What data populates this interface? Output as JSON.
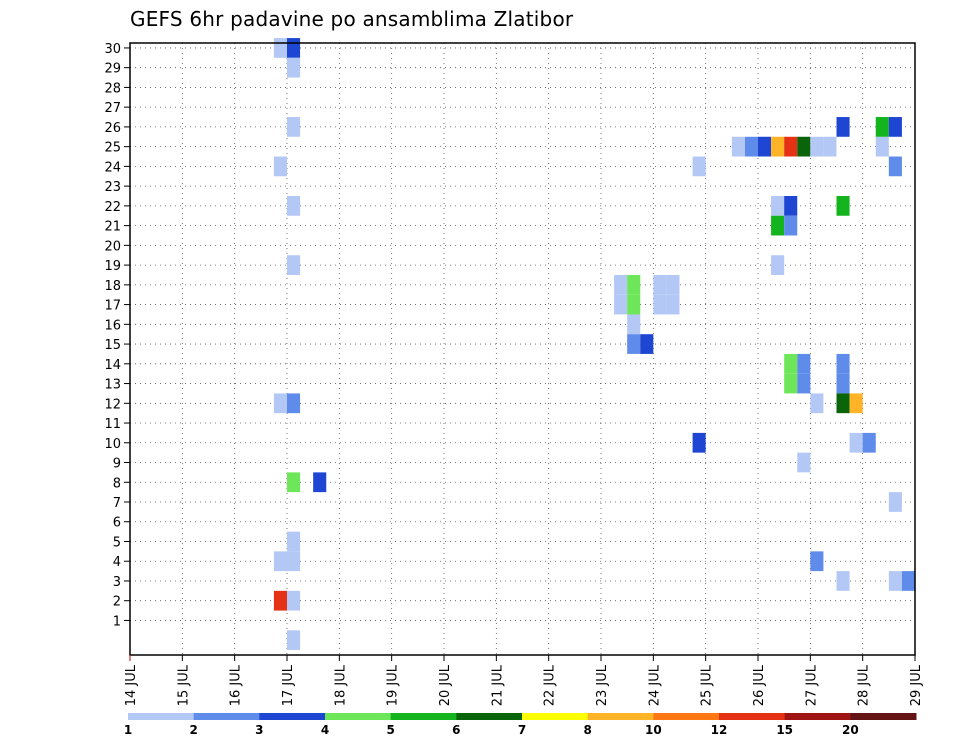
{
  "chart_data": {
    "type": "heatmap",
    "title": "GEFS 6hr padavine po ansamblima Zlatibor",
    "x_tick_labels": [
      "14 JUL",
      "15 JUL",
      "16 JUL",
      "17 JUL",
      "18 JUL",
      "19 JUL",
      "20 JUL",
      "21 JUL",
      "22 JUL",
      "23 JUL",
      "24 JUL",
      "25 JUL",
      "26 JUL",
      "27 JUL",
      "28 JUL",
      "29 JUL"
    ],
    "x_range_days": [
      0,
      15
    ],
    "y_tick_labels": [
      "1",
      "2",
      "3",
      "4",
      "5",
      "6",
      "7",
      "8",
      "9",
      "10",
      "11",
      "12",
      "13",
      "14",
      "15",
      "16",
      "17",
      "18",
      "19",
      "20",
      "21",
      "22",
      "23",
      "24",
      "25",
      "26",
      "27",
      "28",
      "29",
      "30"
    ],
    "y_range_members": [
      0,
      30
    ],
    "grid": true,
    "colorbar": {
      "position": "bottom",
      "tick_labels": [
        "1",
        "2",
        "3",
        "4",
        "5",
        "6",
        "7",
        "8",
        "10",
        "12",
        "15",
        "20"
      ],
      "colors": [
        "#b4c8f5",
        "#5f8ceb",
        "#1e46d2",
        "#6ee65a",
        "#14b41e",
        "#0a640a",
        "#ffff00",
        "#ffb428",
        "#ff7814",
        "#e63214",
        "#a01414",
        "#641414"
      ]
    },
    "cells_note": "each cell: member (row), day (days since 14 JUL 00z, 6-hour steps), class (0-based colour index)",
    "cells": [
      {
        "member": 30,
        "day": 2.75,
        "class": 0
      },
      {
        "member": 30,
        "day": 3.0,
        "class": 2
      },
      {
        "member": 29,
        "day": 3.0,
        "class": 0
      },
      {
        "member": 26,
        "day": 3.0,
        "class": 0
      },
      {
        "member": 24,
        "day": 2.75,
        "class": 0
      },
      {
        "member": 22,
        "day": 3.0,
        "class": 0
      },
      {
        "member": 19,
        "day": 3.0,
        "class": 0
      },
      {
        "member": 12,
        "day": 2.75,
        "class": 0
      },
      {
        "member": 12,
        "day": 3.0,
        "class": 1
      },
      {
        "member": 8,
        "day": 3.0,
        "class": 3
      },
      {
        "member": 8,
        "day": 3.5,
        "class": 2
      },
      {
        "member": 5,
        "day": 3.0,
        "class": 0
      },
      {
        "member": 4,
        "day": 2.75,
        "class": 0
      },
      {
        "member": 4,
        "day": 3.0,
        "class": 0
      },
      {
        "member": 2,
        "day": 2.75,
        "class": 9
      },
      {
        "member": 2,
        "day": 3.0,
        "class": 0
      },
      {
        "member": 0,
        "day": 3.0,
        "class": 0
      },
      {
        "member": 18,
        "day": 9.25,
        "class": 0
      },
      {
        "member": 18,
        "day": 9.5,
        "class": 3
      },
      {
        "member": 18,
        "day": 10.0,
        "class": 0
      },
      {
        "member": 18,
        "day": 10.25,
        "class": 0
      },
      {
        "member": 17,
        "day": 9.25,
        "class": 0
      },
      {
        "member": 17,
        "day": 9.5,
        "class": 3
      },
      {
        "member": 17,
        "day": 10.0,
        "class": 0
      },
      {
        "member": 17,
        "day": 10.25,
        "class": 0
      },
      {
        "member": 16,
        "day": 9.5,
        "class": 0
      },
      {
        "member": 15,
        "day": 9.5,
        "class": 1
      },
      {
        "member": 15,
        "day": 9.75,
        "class": 2
      },
      {
        "member": 24,
        "day": 10.75,
        "class": 0
      },
      {
        "member": 10,
        "day": 10.75,
        "class": 2
      },
      {
        "member": 25,
        "day": 11.5,
        "class": 0
      },
      {
        "member": 25,
        "day": 11.75,
        "class": 1
      },
      {
        "member": 25,
        "day": 12.0,
        "class": 2
      },
      {
        "member": 25,
        "day": 12.25,
        "class": 7
      },
      {
        "member": 25,
        "day": 12.5,
        "class": 9
      },
      {
        "member": 25,
        "day": 12.75,
        "class": 5
      },
      {
        "member": 25,
        "day": 13.0,
        "class": 0
      },
      {
        "member": 25,
        "day": 13.25,
        "class": 0
      },
      {
        "member": 25,
        "day": 14.25,
        "class": 0
      },
      {
        "member": 26,
        "day": 13.5,
        "class": 2
      },
      {
        "member": 26,
        "day": 14.25,
        "class": 4
      },
      {
        "member": 26,
        "day": 14.5,
        "class": 2
      },
      {
        "member": 24,
        "day": 14.5,
        "class": 1
      },
      {
        "member": 22,
        "day": 12.25,
        "class": 0
      },
      {
        "member": 22,
        "day": 12.5,
        "class": 2
      },
      {
        "member": 22,
        "day": 13.5,
        "class": 4
      },
      {
        "member": 21,
        "day": 12.25,
        "class": 4
      },
      {
        "member": 21,
        "day": 12.5,
        "class": 1
      },
      {
        "member": 19,
        "day": 12.25,
        "class": 0
      },
      {
        "member": 14,
        "day": 12.5,
        "class": 3
      },
      {
        "member": 14,
        "day": 12.75,
        "class": 1
      },
      {
        "member": 14,
        "day": 13.5,
        "class": 1
      },
      {
        "member": 13,
        "day": 12.5,
        "class": 3
      },
      {
        "member": 13,
        "day": 12.75,
        "class": 1
      },
      {
        "member": 13,
        "day": 13.5,
        "class": 1
      },
      {
        "member": 12,
        "day": 13.0,
        "class": 0
      },
      {
        "member": 12,
        "day": 13.5,
        "class": 5
      },
      {
        "member": 12,
        "day": 13.75,
        "class": 7
      },
      {
        "member": 10,
        "day": 13.75,
        "class": 0
      },
      {
        "member": 10,
        "day": 14.0,
        "class": 1
      },
      {
        "member": 9,
        "day": 12.75,
        "class": 0
      },
      {
        "member": 7,
        "day": 14.5,
        "class": 0
      },
      {
        "member": 4,
        "day": 13.0,
        "class": 1
      },
      {
        "member": 3,
        "day": 13.5,
        "class": 0
      },
      {
        "member": 3,
        "day": 14.5,
        "class": 0
      },
      {
        "member": 3,
        "day": 14.75,
        "class": 1
      }
    ]
  }
}
